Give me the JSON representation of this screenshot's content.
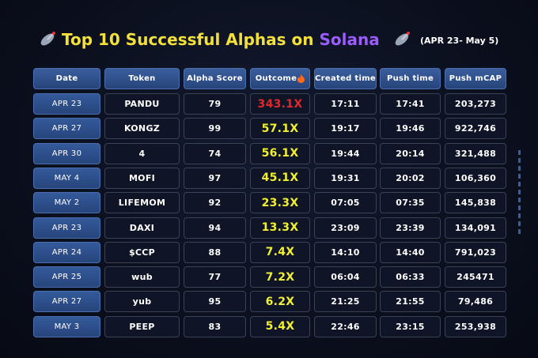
{
  "title": {
    "text": "Top 10 Successful Alphas on",
    "highlight": "Solana"
  },
  "subtitle": "(APR 23- May 5)",
  "table": {
    "header": [
      "Date",
      "Token",
      "Alpha Score",
      "Outcome",
      "Created time",
      "Push time",
      "Push mCAP"
    ],
    "rows": [
      [
        "APR 23",
        "PANDU",
        "79",
        "343.1X",
        "17:11",
        "17:41",
        "203,273"
      ],
      [
        "APR 27",
        "KONGZ",
        "99",
        "57.1X",
        "19:17",
        "19:46",
        "922,746"
      ],
      [
        "APR 30",
        "4",
        "74",
        "56.1X",
        "19:44",
        "20:14",
        "321,488"
      ],
      [
        "MAY 4",
        "MOFI",
        "97",
        "45.1X",
        "19:31",
        "20:02",
        "106,360"
      ],
      [
        "MAY 2",
        "LIFEMOM",
        "92",
        "23.3X",
        "07:05",
        "07:35",
        "145,838"
      ],
      [
        "APR 23",
        "DAXI",
        "94",
        "13.3X",
        "23:09",
        "23:39",
        "134,091"
      ],
      [
        "APR 24",
        "$CCP",
        "88",
        "7.4X",
        "14:10",
        "14:40",
        "791,023"
      ],
      [
        "APR 25",
        "wub",
        "77",
        "7.2X",
        "06:04",
        "06:33",
        "245471"
      ],
      [
        "APR 27",
        "yub",
        "95",
        "6.2X",
        "21:25",
        "21:55",
        "79,486"
      ],
      [
        "MAY 3",
        "PEEP",
        "83",
        "5.4X",
        "22:46",
        "23:15",
        "253,938"
      ]
    ]
  }
}
